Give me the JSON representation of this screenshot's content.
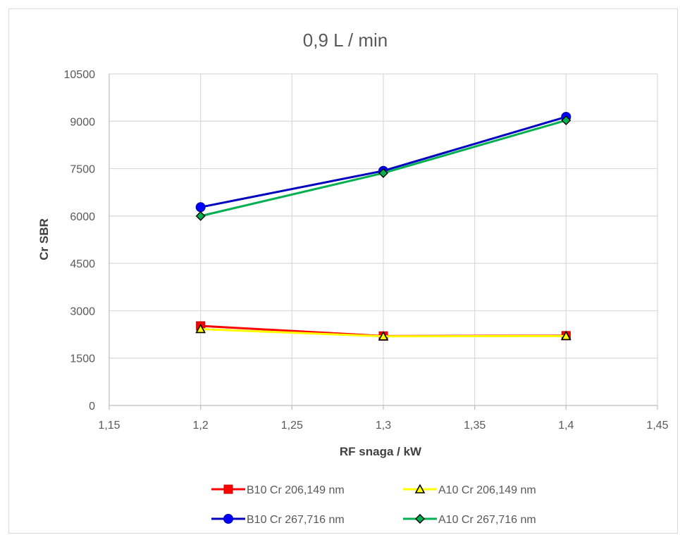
{
  "chart_data": {
    "type": "line",
    "title": "0,9 L / min",
    "xlabel": "RF snaga / kW",
    "ylabel": "Cr SBR",
    "xlim": [
      1.15,
      1.45
    ],
    "ylim": [
      0,
      10500
    ],
    "x_ticks": [
      1.15,
      1.2,
      1.25,
      1.3,
      1.35,
      1.4,
      1.45
    ],
    "x_tick_labels": [
      "1,15",
      "1,2",
      "1,25",
      "1,3",
      "1,35",
      "1,4",
      "1,45"
    ],
    "y_ticks": [
      0,
      1500,
      3000,
      4500,
      6000,
      7500,
      9000,
      10500
    ],
    "y_tick_labels": [
      "0",
      "1500",
      "3000",
      "4500",
      "6000",
      "7500",
      "9000",
      "10500"
    ],
    "grid": true,
    "legend_position": "bottom",
    "x": [
      1.2,
      1.3,
      1.4
    ],
    "series": [
      {
        "name": "B10 Cr 206,149 nm",
        "values": [
          2520,
          2200,
          2210
        ],
        "color": "#ff0000",
        "marker": "square",
        "marker_fill": "#ff0000",
        "marker_stroke": "#c00000"
      },
      {
        "name": "A10 Cr 206,149 nm",
        "values": [
          2420,
          2190,
          2200
        ],
        "color": "#ffff00",
        "marker": "triangle",
        "marker_fill": "#ffff00",
        "marker_stroke": "#000000"
      },
      {
        "name": "B10 Cr 267,716 nm",
        "values": [
          6280,
          7430,
          9140
        ],
        "color": "#0000c0",
        "marker": "circle",
        "marker_fill": "#0000ff",
        "marker_stroke": "#0000a0"
      },
      {
        "name": "A10 Cr 267,716 nm",
        "values": [
          6000,
          7360,
          9030
        ],
        "color": "#00b050",
        "marker": "diamond",
        "marker_fill": "#00b050",
        "marker_stroke": "#000000"
      }
    ]
  }
}
